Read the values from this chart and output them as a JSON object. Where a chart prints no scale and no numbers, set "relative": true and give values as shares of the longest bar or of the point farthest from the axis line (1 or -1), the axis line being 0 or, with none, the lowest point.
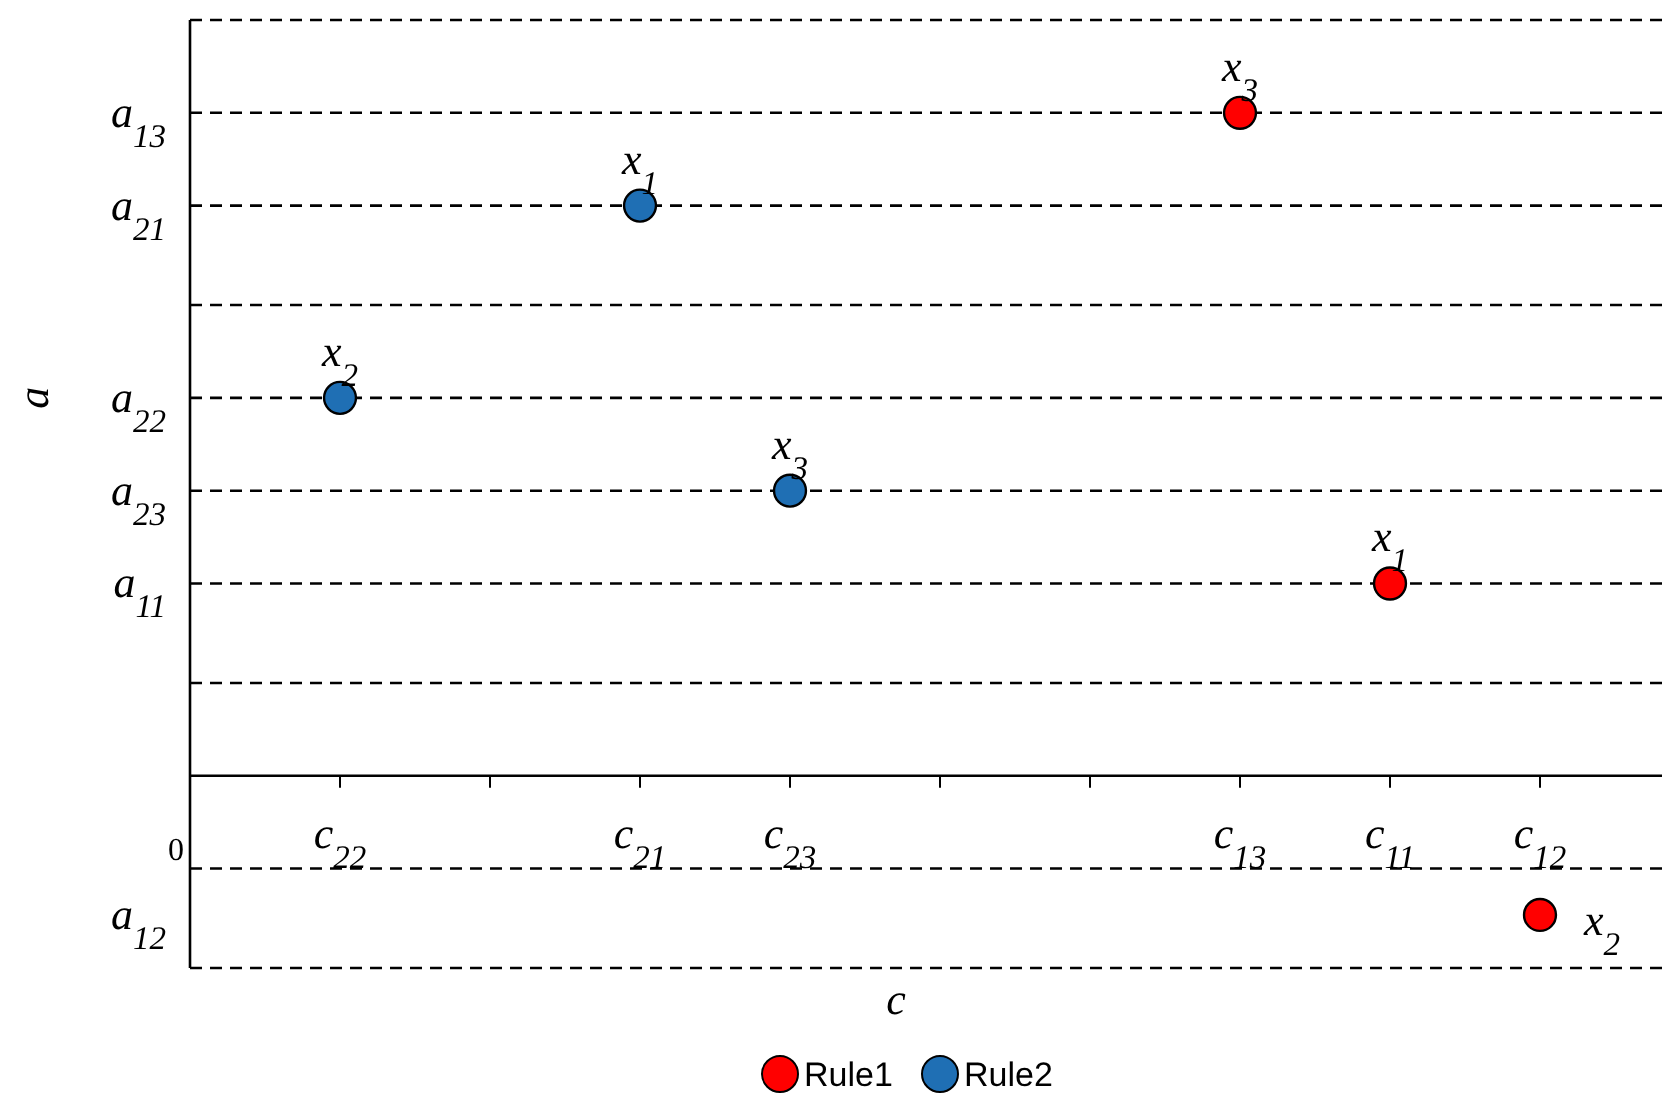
{
  "chart_data": {
    "type": "scatter",
    "xlabel": "c",
    "ylabel": "a",
    "relative": true,
    "categories": [
      "0",
      "c$_{22}$",
      null,
      "c$_{21}$",
      "c$_{23}$",
      null,
      null,
      "c$_{13}$",
      "c$_{11}$",
      "c$_{12}$"
    ],
    "ref_lines": [
      {
        "axis": "y",
        "value": 1.14,
        "line_style": "dashed"
      },
      {
        "axis": "y",
        "value": 1,
        "line_style": "dashed",
        "label": "a$_{13}$"
      },
      {
        "axis": "y",
        "value": 0.86,
        "line_style": "dashed",
        "label": "a$_{21}$"
      },
      {
        "axis": "y",
        "value": 0.71,
        "line_style": "dashed"
      },
      {
        "axis": "y",
        "value": 0.57,
        "line_style": "dashed",
        "label": "a$_{22}$"
      },
      {
        "axis": "y",
        "value": 0.43,
        "line_style": "dashed",
        "label": "a$_{23}$"
      },
      {
        "axis": "y",
        "value": 0.29,
        "line_style": "dashed",
        "label": "a$_{11}$"
      },
      {
        "axis": "y",
        "value": 0.14,
        "line_style": "dashed"
      },
      {
        "axis": "y",
        "value": -0.14,
        "line_style": "dashed"
      },
      {
        "axis": "y",
        "value": -0.29,
        "line_style": "dashed"
      }
    ],
    "marker": "circle",
    "legend": "bottom",
    "series": [
      {
        "name": "Rule1",
        "color": "#ff0000",
        "x": [
          "c$_{11}$",
          "c$_{12}$",
          "c$_{13}$"
        ],
        "values": [
          0.29,
          -0.21,
          1
        ]
      },
      {
        "name": "Rule2",
        "color": "#1f6fb4",
        "x": [
          "c$_{21}$",
          "c$_{22}$",
          "c$_{23}$"
        ],
        "values": [
          0.86,
          0.57,
          0.43
        ]
      }
    ],
    "annotations": [
      "a$_{12}$",
      {
        "text": "x$_{1}$",
        "x": "c$_{11}$",
        "y": 0.29
      },
      {
        "text": "x$_{2}$",
        "x": "c$_{12}$",
        "y": -0.21
      },
      {
        "text": "x$_{3}$",
        "x": "c$_{13}$",
        "y": 1
      },
      {
        "text": "x$_{1}$",
        "x": "c$_{21}$",
        "y": 0.86
      },
      {
        "text": "x$_{2}$",
        "x": "c$_{22}$",
        "y": 0.57
      },
      {
        "text": "x$_{3}$",
        "x": "c$_{23}$",
        "y": 0.43
      }
    ]
  }
}
